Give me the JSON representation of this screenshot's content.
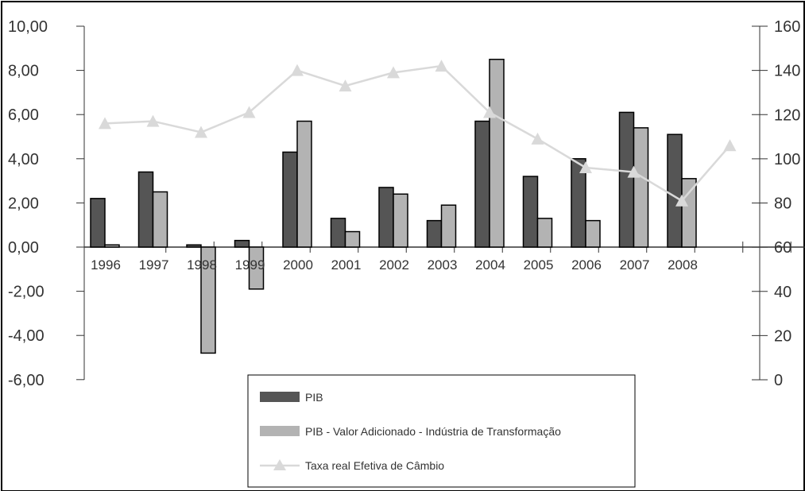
{
  "chart_data": {
    "type": "bar",
    "categories": [
      "1996",
      "1997",
      "1998",
      "1999",
      "2000",
      "2001",
      "2002",
      "2003",
      "2004",
      "2005",
      "2006",
      "2007",
      "2008"
    ],
    "y_left": {
      "ylim": [
        -6,
        10
      ],
      "ticks": [
        10,
        8,
        6,
        4,
        2,
        0,
        -2,
        -4,
        -6
      ],
      "tick_labels": [
        "10,00",
        "8,00",
        "6,00",
        "4,00",
        "2,00",
        "0,00",
        "-2,00",
        "-4,00",
        "-6,00"
      ]
    },
    "y_right": {
      "ylim": [
        0,
        160
      ],
      "ticks": [
        160,
        140,
        120,
        100,
        80,
        60,
        40,
        20,
        0
      ],
      "tick_labels": [
        "160",
        "140",
        "120",
        "100",
        "80",
        "60",
        "40",
        "20",
        "0"
      ]
    },
    "series": [
      {
        "name": "PIB",
        "kind": "bar",
        "axis": "left",
        "color": "#555555",
        "values": [
          2.2,
          3.4,
          0.1,
          0.3,
          4.3,
          1.3,
          2.7,
          1.2,
          5.7,
          3.2,
          4.0,
          6.1,
          5.1
        ]
      },
      {
        "name": "PIB - Valor Adicionado - Indústria de Transformação",
        "kind": "bar",
        "axis": "left",
        "color": "#b3b3b3",
        "values": [
          0.1,
          2.5,
          -4.8,
          -1.9,
          5.7,
          0.7,
          2.4,
          1.9,
          8.5,
          1.3,
          1.2,
          5.4,
          3.1
        ]
      },
      {
        "name": "Taxa real Efetiva de Câmbio",
        "kind": "line",
        "axis": "right",
        "color": "#d9d9d9",
        "x": [
          "1996",
          "1997",
          "1998",
          "1999",
          "2000",
          "2001",
          "2002",
          "2003",
          "2004",
          "2005",
          "2006",
          "2007",
          "2008",
          ""
        ],
        "values": [
          116,
          117,
          112,
          121,
          140,
          133,
          139,
          142,
          121,
          109,
          96,
          94,
          81,
          106
        ]
      }
    ],
    "legend": {
      "position": "bottom-center",
      "entries": [
        {
          "label": "PIB",
          "marker": "bar",
          "color": "#555555"
        },
        {
          "label": "PIB - Valor Adicionado - Indústria de Transformação",
          "marker": "bar",
          "color": "#b3b3b3"
        },
        {
          "label": "Taxa real Efetiva de Câmbio",
          "marker": "line-triangle",
          "color": "#d9d9d9"
        }
      ]
    },
    "grid": false
  }
}
